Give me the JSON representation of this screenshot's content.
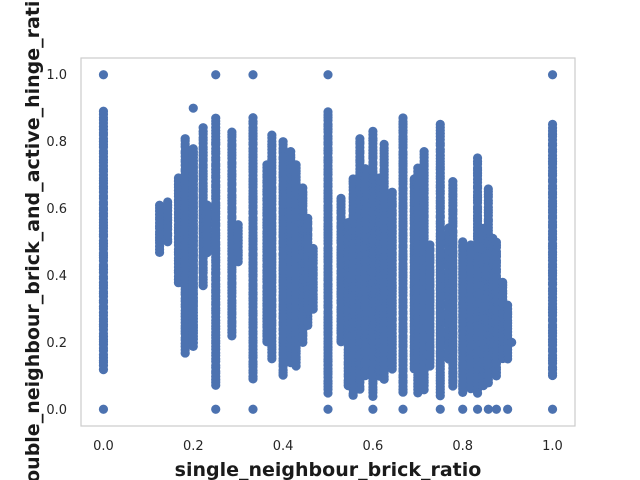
{
  "chart_data": {
    "type": "scatter",
    "xlabel": "single_neighbour_brick_ratio",
    "ylabel": "double_neighbour_brick_and_active_hinge_ratio",
    "xlim": [
      -0.05,
      1.05
    ],
    "ylim": [
      -0.05,
      1.05
    ],
    "xticks": [
      "0.0",
      "0.2",
      "0.4",
      "0.6",
      "0.8",
      "1.0"
    ],
    "yticks": [
      "0.0",
      "0.2",
      "0.4",
      "0.6",
      "0.8",
      "1.0"
    ],
    "grid": false,
    "legend": "none",
    "marker_color": "#4c72b0",
    "columns": [
      {
        "x": 0.0,
        "ymin": 0.12,
        "ymax": 0.89,
        "extra": [
          0.0,
          1.0
        ]
      },
      {
        "x": 0.125,
        "ymin": 0.47,
        "ymax": 0.61,
        "extra": []
      },
      {
        "x": 0.143,
        "ymin": 0.5,
        "ymax": 0.62,
        "extra": []
      },
      {
        "x": 0.167,
        "ymin": 0.38,
        "ymax": 0.69,
        "extra": []
      },
      {
        "x": 0.182,
        "ymin": 0.17,
        "ymax": 0.81,
        "extra": []
      },
      {
        "x": 0.2,
        "ymin": 0.19,
        "ymax": 0.78,
        "extra": []
      },
      {
        "x": 0.2,
        "ymin": 0.2,
        "ymax": 0.77,
        "extra": [
          0.9
        ]
      },
      {
        "x": 0.222,
        "ymin": 0.37,
        "ymax": 0.84,
        "extra": []
      },
      {
        "x": 0.231,
        "ymin": 0.47,
        "ymax": 0.61,
        "extra": []
      },
      {
        "x": 0.25,
        "ymin": 0.07,
        "ymax": 0.87,
        "extra": [
          0.0,
          1.0
        ]
      },
      {
        "x": 0.286,
        "ymin": 0.22,
        "ymax": 0.83,
        "extra": []
      },
      {
        "x": 0.3,
        "ymin": 0.44,
        "ymax": 0.55,
        "extra": []
      },
      {
        "x": 0.333,
        "ymin": 0.09,
        "ymax": 0.87,
        "extra": [
          0.0,
          1.0
        ]
      },
      {
        "x": 0.364,
        "ymin": 0.2,
        "ymax": 0.73,
        "extra": []
      },
      {
        "x": 0.375,
        "ymin": 0.15,
        "ymax": 0.82,
        "extra": []
      },
      {
        "x": 0.4,
        "ymin": 0.1,
        "ymax": 0.8,
        "extra": []
      },
      {
        "x": 0.417,
        "ymin": 0.14,
        "ymax": 0.77,
        "extra": []
      },
      {
        "x": 0.429,
        "ymin": 0.13,
        "ymax": 0.73,
        "extra": []
      },
      {
        "x": 0.444,
        "ymin": 0.2,
        "ymax": 0.66,
        "extra": []
      },
      {
        "x": 0.455,
        "ymin": 0.25,
        "ymax": 0.57,
        "extra": []
      },
      {
        "x": 0.467,
        "ymin": 0.3,
        "ymax": 0.48,
        "extra": []
      },
      {
        "x": 0.5,
        "ymin": 0.05,
        "ymax": 0.89,
        "extra": [
          0.0,
          1.0
        ]
      },
      {
        "x": 0.529,
        "ymin": 0.2,
        "ymax": 0.63,
        "extra": []
      },
      {
        "x": 0.545,
        "ymin": 0.07,
        "ymax": 0.56,
        "extra": []
      },
      {
        "x": 0.556,
        "ymin": 0.04,
        "ymax": 0.69,
        "extra": []
      },
      {
        "x": 0.571,
        "ymin": 0.06,
        "ymax": 0.81,
        "extra": []
      },
      {
        "x": 0.583,
        "ymin": 0.1,
        "ymax": 0.72,
        "extra": []
      },
      {
        "x": 0.6,
        "ymin": 0.04,
        "ymax": 0.83,
        "extra": [
          0.0
        ]
      },
      {
        "x": 0.615,
        "ymin": 0.1,
        "ymax": 0.69,
        "extra": []
      },
      {
        "x": 0.625,
        "ymin": 0.09,
        "ymax": 0.79,
        "extra": []
      },
      {
        "x": 0.643,
        "ymin": 0.12,
        "ymax": 0.65,
        "extra": []
      },
      {
        "x": 0.667,
        "ymin": 0.05,
        "ymax": 0.87,
        "extra": [
          0.0
        ]
      },
      {
        "x": 0.692,
        "ymin": 0.12,
        "ymax": 0.69,
        "extra": []
      },
      {
        "x": 0.7,
        "ymin": 0.05,
        "ymax": 0.72,
        "extra": []
      },
      {
        "x": 0.714,
        "ymin": 0.06,
        "ymax": 0.77,
        "extra": []
      },
      {
        "x": 0.727,
        "ymin": 0.13,
        "ymax": 0.49,
        "extra": []
      },
      {
        "x": 0.75,
        "ymin": 0.04,
        "ymax": 0.85,
        "extra": [
          0.0
        ]
      },
      {
        "x": 0.769,
        "ymin": 0.15,
        "ymax": 0.54,
        "extra": []
      },
      {
        "x": 0.778,
        "ymin": 0.07,
        "ymax": 0.68,
        "extra": []
      },
      {
        "x": 0.8,
        "ymin": 0.05,
        "ymax": 0.5,
        "extra": [
          0.0
        ]
      },
      {
        "x": 0.818,
        "ymin": 0.06,
        "ymax": 0.49,
        "extra": []
      },
      {
        "x": 0.833,
        "ymin": 0.05,
        "ymax": 0.75,
        "extra": [
          0.0
        ]
      },
      {
        "x": 0.846,
        "ymin": 0.07,
        "ymax": 0.54,
        "extra": []
      },
      {
        "x": 0.857,
        "ymin": 0.08,
        "ymax": 0.66,
        "extra": [
          0.0
        ]
      },
      {
        "x": 0.867,
        "ymin": 0.16,
        "ymax": 0.51,
        "extra": []
      },
      {
        "x": 0.875,
        "ymin": 0.1,
        "ymax": 0.5,
        "extra": [
          0.0
        ]
      },
      {
        "x": 0.889,
        "ymin": 0.15,
        "ymax": 0.38,
        "extra": []
      },
      {
        "x": 0.9,
        "ymin": 0.15,
        "ymax": 0.31,
        "extra": [
          0.0
        ]
      },
      {
        "x": 0.909,
        "ymin": 0.2,
        "ymax": 0.2,
        "extra": []
      },
      {
        "x": 1.0,
        "ymin": 0.1,
        "ymax": 0.85,
        "extra": [
          0.0,
          1.0
        ]
      }
    ]
  }
}
